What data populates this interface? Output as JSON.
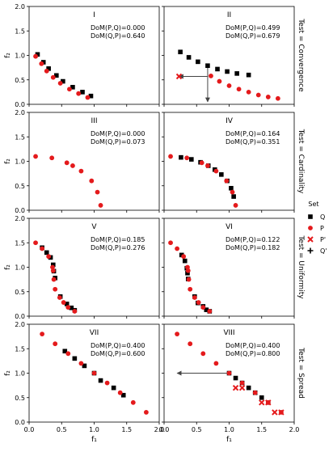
{
  "figure": {
    "legend": {
      "title": "Set",
      "entries": [
        {
          "label": "Q",
          "marker": "square",
          "color": "#000000"
        },
        {
          "label": "P",
          "marker": "circle",
          "color": "#e41a1c"
        },
        {
          "label": "P'",
          "marker": "x",
          "color": "#e41a1c"
        },
        {
          "label": "Q'",
          "marker": "plus",
          "color": "#000000"
        }
      ]
    },
    "row_labels": [
      "Test = Convergence",
      "Test = Cardinality",
      "Test = Uniformity",
      "Test = Spread"
    ],
    "ylabel": "f₂",
    "xlabel": "f₁",
    "xticks": [
      "0.0",
      "0.5",
      "1.0",
      "1.5",
      "2.0"
    ],
    "yticks": [
      "0.0",
      "0.5",
      "1.0",
      "1.5",
      "2.0"
    ]
  },
  "colors": {
    "Q": "#000000",
    "P": "#e41a1c",
    "arrow": "#555555"
  },
  "chart_data": [
    {
      "type": "scatter",
      "title": "I",
      "xlim": [
        0,
        2
      ],
      "ylim": [
        0,
        2
      ],
      "annotations": [
        "DoM(P,Q)=0.000",
        "DoM(Q,P)=0.640"
      ],
      "series": [
        {
          "name": "Q",
          "marker": "square",
          "x": [
            0.13,
            0.22,
            0.3,
            0.42,
            0.52,
            0.67,
            0.82,
            0.95
          ],
          "y": [
            1.02,
            0.86,
            0.73,
            0.59,
            0.47,
            0.35,
            0.25,
            0.17
          ]
        },
        {
          "name": "P",
          "marker": "circle",
          "x": [
            0.1,
            0.19,
            0.27,
            0.37,
            0.48,
            0.62,
            0.76,
            0.9
          ],
          "y": [
            0.98,
            0.83,
            0.68,
            0.55,
            0.43,
            0.31,
            0.22,
            0.14
          ]
        }
      ]
    },
    {
      "type": "scatter",
      "title": "II",
      "xlim": [
        0,
        2
      ],
      "ylim": [
        0,
        2
      ],
      "annotations": [
        "DoM(P,Q)=0.499",
        "DoM(Q,P)=0.679"
      ],
      "series": [
        {
          "name": "Q",
          "marker": "square",
          "x": [
            0.25,
            0.38,
            0.52,
            0.67,
            0.82,
            0.97,
            1.12,
            1.3
          ],
          "y": [
            1.07,
            0.96,
            0.87,
            0.79,
            0.72,
            0.67,
            0.63,
            0.6
          ]
        },
        {
          "name": "P",
          "marker": "circle",
          "x": [
            0.72,
            0.85,
            1.0,
            1.15,
            1.3,
            1.45,
            1.6,
            1.75
          ],
          "y": [
            0.58,
            0.47,
            0.38,
            0.31,
            0.25,
            0.19,
            0.15,
            0.12
          ]
        },
        {
          "name": "P'",
          "marker": "x",
          "x": [
            0.23
          ],
          "y": [
            0.57
          ]
        }
      ],
      "arrows": [
        {
          "from": [
            0.67,
            0.57
          ],
          "to": [
            0.23,
            0.57
          ]
        },
        {
          "from": [
            0.67,
            0.79
          ],
          "to": [
            0.67,
            0.05
          ]
        }
      ]
    },
    {
      "type": "scatter",
      "title": "III",
      "xlim": [
        0,
        2
      ],
      "ylim": [
        0,
        2
      ],
      "annotations": [
        "DoM(P,Q)=0.000",
        "DoM(Q,P)=0.073"
      ],
      "series": [
        {
          "name": "P",
          "marker": "circle",
          "x": [
            0.1,
            0.35,
            0.58,
            0.67,
            0.8,
            0.96,
            1.05,
            1.1
          ],
          "y": [
            1.1,
            1.07,
            0.97,
            0.91,
            0.8,
            0.6,
            0.37,
            0.1
          ]
        }
      ]
    },
    {
      "type": "scatter",
      "title": "IV",
      "xlim": [
        0,
        2
      ],
      "ylim": [
        0,
        2
      ],
      "annotations": [
        "DoM(P,Q)=0.164",
        "DoM(Q,P)=0.351"
      ],
      "series": [
        {
          "name": "Q",
          "marker": "square",
          "x": [
            0.26,
            0.42,
            0.56,
            0.68,
            0.78,
            0.88,
            0.97,
            1.03,
            1.07
          ],
          "y": [
            1.08,
            1.04,
            0.98,
            0.91,
            0.83,
            0.73,
            0.6,
            0.45,
            0.28
          ]
        },
        {
          "name": "P",
          "marker": "circle",
          "x": [
            0.1,
            0.35,
            0.58,
            0.67,
            0.8,
            0.96,
            1.05,
            1.1
          ],
          "y": [
            1.1,
            1.07,
            0.97,
            0.91,
            0.8,
            0.6,
            0.37,
            0.1
          ]
        }
      ]
    },
    {
      "type": "scatter",
      "title": "V",
      "xlim": [
        0,
        2
      ],
      "ylim": [
        0,
        2
      ],
      "annotations": [
        "DoM(P,Q)=0.185",
        "DoM(Q,P)=0.276"
      ],
      "series": [
        {
          "name": "Q",
          "marker": "square",
          "x": [
            0.2,
            0.27,
            0.33,
            0.37,
            0.38,
            0.4,
            0.48,
            0.58,
            0.65,
            0.7
          ],
          "y": [
            1.4,
            1.3,
            1.2,
            1.05,
            0.92,
            0.78,
            0.4,
            0.25,
            0.17,
            0.12
          ]
        },
        {
          "name": "P",
          "marker": "circle",
          "x": [
            0.1,
            0.2,
            0.3,
            0.36,
            0.37,
            0.38,
            0.4,
            0.47,
            0.53,
            0.6,
            0.7
          ],
          "y": [
            1.5,
            1.38,
            1.22,
            1.0,
            0.93,
            0.75,
            0.55,
            0.38,
            0.28,
            0.18,
            0.1
          ]
        }
      ]
    },
    {
      "type": "scatter",
      "title": "VI",
      "xlim": [
        0,
        2
      ],
      "ylim": [
        0,
        2
      ],
      "annotations": [
        "DoM(P,Q)=0.122",
        "DoM(Q,P)=0.182"
      ],
      "series": [
        {
          "name": "Q",
          "marker": "square",
          "x": [
            0.27,
            0.32,
            0.35,
            0.36,
            0.37,
            0.47,
            0.52,
            0.6,
            0.65,
            0.7
          ],
          "y": [
            1.25,
            1.13,
            0.98,
            0.88,
            0.76,
            0.4,
            0.27,
            0.2,
            0.13,
            0.1
          ]
        },
        {
          "name": "P",
          "marker": "circle",
          "x": [
            0.1,
            0.2,
            0.3,
            0.36,
            0.37,
            0.38,
            0.4,
            0.47,
            0.53,
            0.6,
            0.7
          ],
          "y": [
            1.5,
            1.38,
            1.22,
            1.0,
            0.93,
            0.75,
            0.55,
            0.38,
            0.28,
            0.18,
            0.1
          ]
        }
      ]
    },
    {
      "type": "scatter",
      "title": "VII",
      "xlim": [
        0,
        2
      ],
      "ylim": [
        0,
        2
      ],
      "annotations": [
        "DoM(P,Q)=0.400",
        "DoM(Q,P)=0.600"
      ],
      "series": [
        {
          "name": "Q",
          "marker": "square",
          "x": [
            0.55,
            0.7,
            0.85,
            1.0,
            1.1,
            1.3,
            1.45
          ],
          "y": [
            1.45,
            1.3,
            1.15,
            1.0,
            0.85,
            0.7,
            0.55
          ]
        },
        {
          "name": "P",
          "marker": "circle",
          "x": [
            0.2,
            0.4,
            0.6,
            0.8,
            1.0,
            1.2,
            1.4,
            1.6,
            1.8
          ],
          "y": [
            1.8,
            1.6,
            1.4,
            1.2,
            1.0,
            0.8,
            0.6,
            0.4,
            0.2
          ]
        }
      ]
    },
    {
      "type": "scatter",
      "title": "VIII",
      "xlim": [
        0,
        2
      ],
      "ylim": [
        0,
        2
      ],
      "annotations": [
        "DoM(P,Q)=0.400",
        "DoM(Q,P)=0.800"
      ],
      "series": [
        {
          "name": "Q",
          "marker": "square",
          "x": [
            1.0,
            1.1,
            1.2,
            1.3,
            1.4,
            1.5,
            1.6
          ],
          "y": [
            1.0,
            0.9,
            0.8,
            0.7,
            0.6,
            0.5,
            0.4
          ]
        },
        {
          "name": "P",
          "marker": "circle",
          "x": [
            0.2,
            0.4,
            0.6,
            0.8,
            1.0,
            1.2,
            1.4,
            1.6,
            1.8
          ],
          "y": [
            1.8,
            1.6,
            1.4,
            1.2,
            1.0,
            0.8,
            0.6,
            0.4,
            0.2
          ]
        },
        {
          "name": "P'",
          "marker": "x",
          "x": [
            1.1,
            1.2,
            1.5,
            1.6,
            1.7,
            1.8
          ],
          "y": [
            0.7,
            0.7,
            0.4,
            0.4,
            0.2,
            0.2
          ]
        }
      ],
      "arrows": [
        {
          "from": [
            1.0,
            1.0
          ],
          "to": [
            0.2,
            1.0
          ]
        }
      ]
    }
  ]
}
